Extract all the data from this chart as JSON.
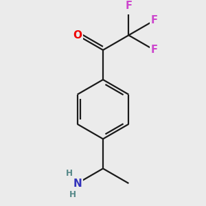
{
  "background_color": "#ebebeb",
  "bond_color": "#1a1a1a",
  "atom_colors": {
    "O": "#ee0000",
    "F": "#cc44cc",
    "N": "#3333bb",
    "H_N": "#558888"
  },
  "figsize": [
    3.0,
    3.0
  ],
  "dpi": 100,
  "lw": 1.6,
  "fs": 10.5
}
